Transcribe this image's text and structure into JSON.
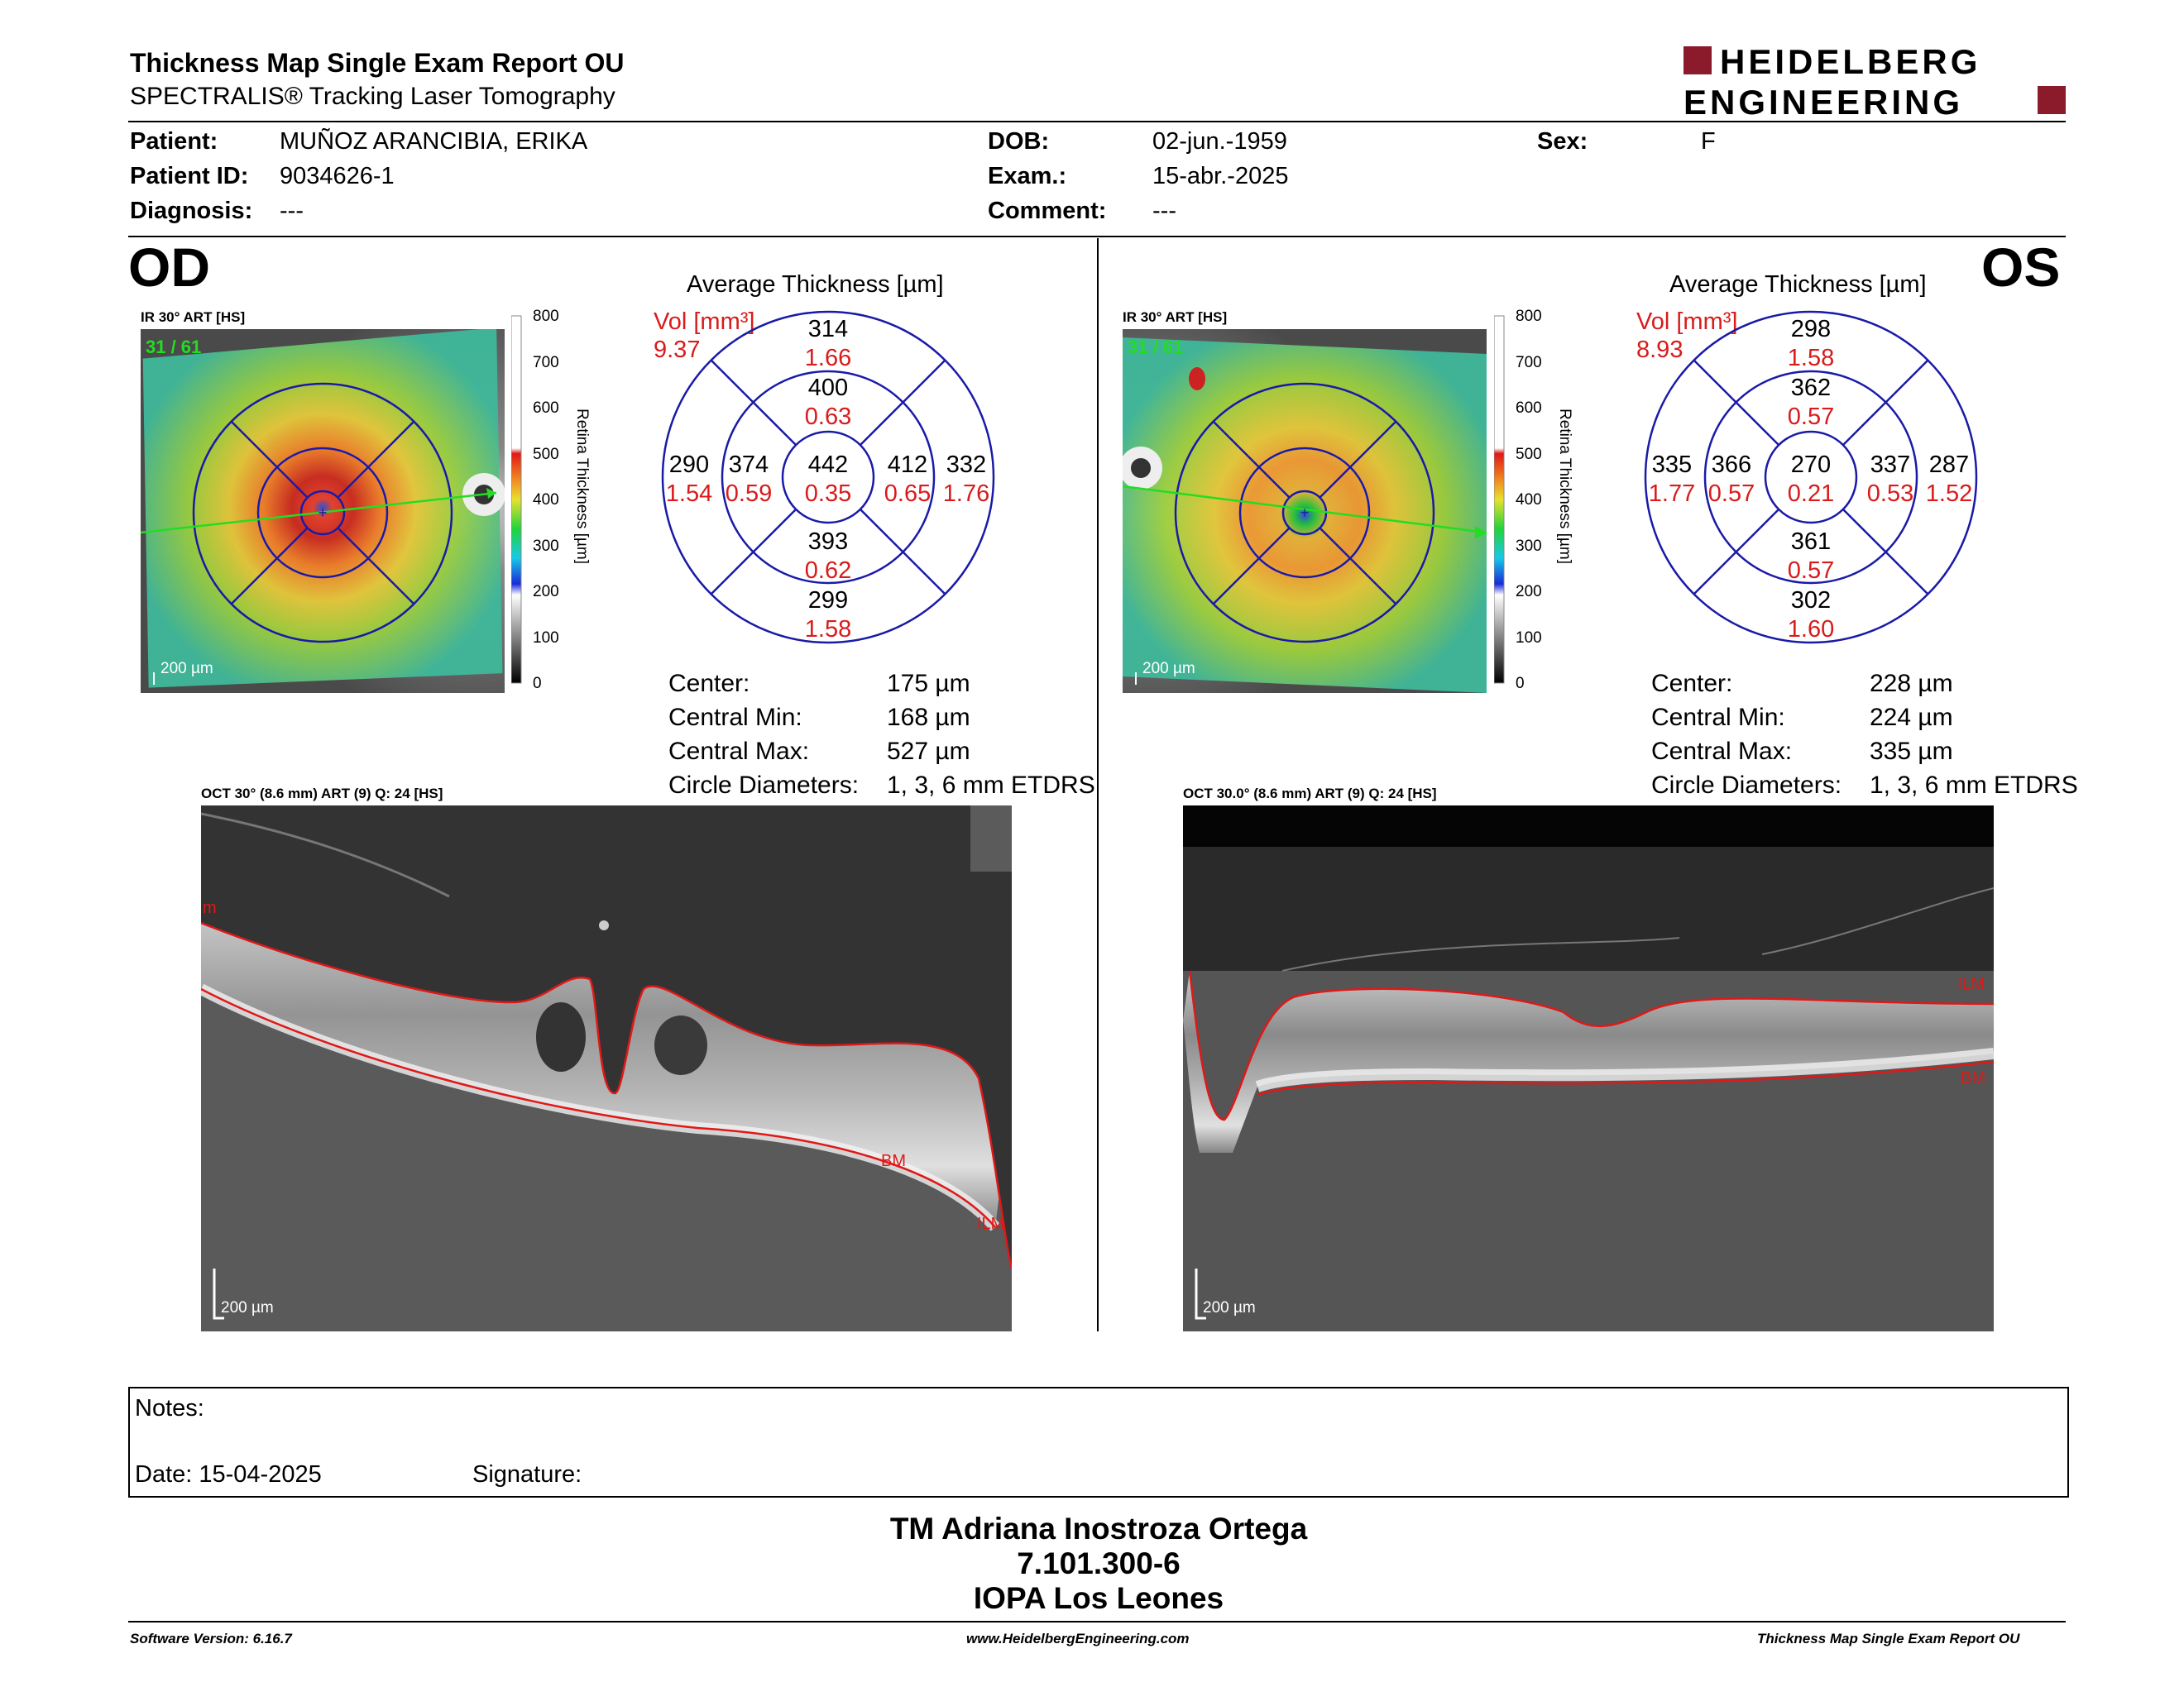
{
  "header": {
    "title": "Thickness Map Single Exam Report OU",
    "subtitle": "SPECTRALIS® Tracking Laser Tomography",
    "logo_line1": "HEIDELBERG",
    "logo_line2": "ENGINEERING",
    "logo_color": "#8b1a2b"
  },
  "patient": {
    "patient_label": "Patient:",
    "patient_value": "MUÑOZ ARANCIBIA, ERIKA",
    "id_label": "Patient ID:",
    "id_value": "9034626-1",
    "diag_label": "Diagnosis:",
    "diag_value": "---",
    "dob_label": "DOB:",
    "dob_value": "02-jun.-1959",
    "exam_label": "Exam.:",
    "exam_value": "15-abr.-2025",
    "comment_label": "Comment:",
    "comment_value": "---",
    "sex_label": "Sex:",
    "sex_value": "F"
  },
  "od": {
    "eye": "OD",
    "ir_caption": "IR 30° ART [HS]",
    "frame": "31 / 61",
    "scale": "200 µm",
    "avg_title": "Average Thickness [µm]",
    "vol_label": "Vol [mm³]",
    "vol_value": "9.37",
    "etdrs": {
      "center": {
        "t": "442",
        "v": "0.35"
      },
      "inner_sup": {
        "t": "400",
        "v": "0.63"
      },
      "inner_nasal": {
        "t": "374",
        "v": "0.59"
      },
      "inner_temp": {
        "t": "412",
        "v": "0.65"
      },
      "inner_inf": {
        "t": "393",
        "v": "0.62"
      },
      "outer_sup": {
        "t": "314",
        "v": "1.66"
      },
      "outer_nasal": {
        "t": "290",
        "v": "1.54"
      },
      "outer_temp": {
        "t": "332",
        "v": "1.76"
      },
      "outer_inf": {
        "t": "299",
        "v": "1.58"
      }
    },
    "stats": {
      "center_label": "Center:",
      "center_value": "175 µm",
      "min_label": "Central Min:",
      "min_value": "168 µm",
      "max_label": "Central Max:",
      "max_value": "527 µm",
      "diam_label": "Circle Diameters:",
      "diam_value": "1, 3, 6 mm ETDRS"
    },
    "oct_caption": "OCT 30° (8.6 mm) ART (9) Q: 24 [HS]",
    "oct_scale": "200 µm",
    "labels": [
      "m",
      "BM",
      "ILM"
    ]
  },
  "os": {
    "eye": "OS",
    "ir_caption": "IR 30° ART [HS]",
    "frame": "31 / 61",
    "scale": "200 µm",
    "avg_title": "Average Thickness [µm]",
    "vol_label": "Vol [mm³]",
    "vol_value": "8.93",
    "etdrs": {
      "center": {
        "t": "270",
        "v": "0.21"
      },
      "inner_sup": {
        "t": "362",
        "v": "0.57"
      },
      "inner_nasal": {
        "t": "337",
        "v": "0.53"
      },
      "inner_temp": {
        "t": "366",
        "v": "0.57"
      },
      "inner_inf": {
        "t": "361",
        "v": "0.57"
      },
      "outer_sup": {
        "t": "298",
        "v": "1.58"
      },
      "outer_nasal": {
        "t": "287",
        "v": "1.52"
      },
      "outer_temp": {
        "t": "335",
        "v": "1.77"
      },
      "outer_inf": {
        "t": "302",
        "v": "1.60"
      }
    },
    "stats": {
      "center_label": "Center:",
      "center_value": "228 µm",
      "min_label": "Central Min:",
      "min_value": "224 µm",
      "max_label": "Central Max:",
      "max_value": "335 µm",
      "diam_label": "Circle Diameters:",
      "diam_value": "1, 3, 6 mm ETDRS"
    },
    "oct_caption": "OCT 30.0° (8.6 mm) ART (9) Q: 24 [HS]",
    "oct_scale": "200 µm",
    "labels": [
      "ILM",
      "BM"
    ]
  },
  "colorbar": {
    "ticks": [
      "800",
      "700",
      "600",
      "500",
      "400",
      "300",
      "200",
      "100",
      "0"
    ],
    "label": "Retina Thickness [µm]"
  },
  "notes": {
    "notes_label": "Notes:",
    "date_label": "Date: 15-04-2025",
    "signature_label": "Signature:"
  },
  "signature": {
    "name": "TM Adriana Inostroza Ortega",
    "rut": "7.101.300-6",
    "place": "IOPA Los Leones"
  },
  "footer": {
    "version": "Software Version: 6.16.7",
    "website": "www.HeidelbergEngineering.com",
    "report": "Thickness Map Single Exam Report OU"
  },
  "colors": {
    "circle_blue": "#1a1aa8",
    "volume_red": "#d91b1b",
    "segmentation_red": "#e01818",
    "scan_green": "#22dd22"
  }
}
